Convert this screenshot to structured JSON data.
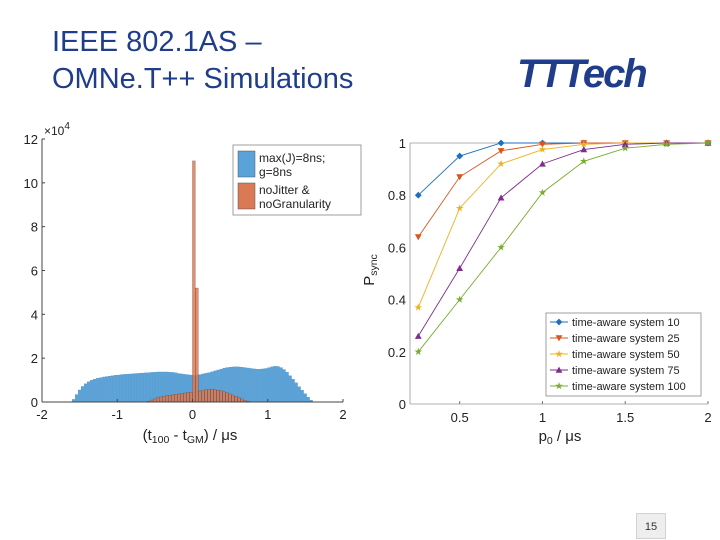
{
  "slide": {
    "title_line1": "IEEE 802.1AS –",
    "title_line2": "OMNe.T++ Simulations",
    "logo_text": "TTTech",
    "page_number": "15",
    "title_color": "#1f3d8a",
    "logo_color": "#1f3d8a"
  },
  "chart_data": [
    {
      "type": "histogram",
      "xlabel_parts": [
        "(t",
        "100",
        " - t",
        "GM",
        ") / μs"
      ],
      "ylabel": "",
      "y_multiplier": "×10",
      "y_multiplier_exp": "4",
      "xlim": [
        -2,
        2
      ],
      "ylim": [
        0,
        120000
      ],
      "x_ticks": [
        -2,
        -1,
        0,
        1,
        2
      ],
      "x_tick_labels": [
        "-2",
        "-1",
        "0",
        "1",
        "2"
      ],
      "y_ticks": [
        0,
        20000,
        40000,
        60000,
        80000,
        100000,
        120000
      ],
      "y_tick_labels": [
        "0",
        "2",
        "4",
        "6",
        "8",
        "10",
        "12"
      ],
      "legend_position": "top-right",
      "series": [
        {
          "name_lines": [
            "max(J)=8ns;",
            "g=8ns"
          ],
          "color": "#5aa3d8",
          "bin_start": -1.6,
          "bin_width": 0.04,
          "values": [
            1200,
            3400,
            5500,
            7100,
            8300,
            9200,
            9900,
            10400,
            10800,
            11100,
            11400,
            11600,
            11800,
            12000,
            12200,
            12300,
            12500,
            12600,
            12700,
            12800,
            12900,
            13000,
            13100,
            13200,
            13300,
            13400,
            13500,
            13600,
            13700,
            13700,
            13700,
            13700,
            13600,
            13500,
            13300,
            13000,
            12800,
            12600,
            12500,
            12300,
            12200,
            12300,
            12500,
            12800,
            13100,
            13400,
            13800,
            14200,
            14600,
            15000,
            15400,
            15700,
            15900,
            16000,
            16100,
            16000,
            15900,
            15700,
            15500,
            15300,
            15100,
            15000,
            15000,
            15100,
            15300,
            15700,
            16100,
            16300,
            16200,
            15700,
            14800,
            13600,
            12000,
            10400,
            8800,
            7000,
            5400,
            3800,
            2200,
            800
          ]
        },
        {
          "name_lines": [
            "noJitter &",
            "noGranularity"
          ],
          "color": "#d97a55",
          "bin_start": -0.6,
          "bin_width": 0.04,
          "values": [
            300,
            900,
            1400,
            1900,
            2300,
            2600,
            2900,
            3100,
            3300,
            3500,
            3700,
            3900,
            4100,
            4300,
            4500,
            110000,
            52000,
            5000,
            5300,
            5600,
            5800,
            5900,
            5700,
            5400,
            5100,
            4700,
            4200,
            3700,
            3200,
            2600,
            2000,
            1400,
            800,
            300
          ]
        }
      ]
    },
    {
      "type": "line",
      "xlabel_parts": [
        "p",
        "0",
        " / μs"
      ],
      "ylabel_parts": [
        "P",
        "sync"
      ],
      "xlim": [
        0.2,
        2
      ],
      "ylim": [
        0,
        1
      ],
      "x_ticks": [
        0.5,
        1,
        1.5,
        2
      ],
      "x_tick_labels": [
        "0.5",
        "1",
        "1.5",
        "2"
      ],
      "y_ticks": [
        0,
        0.2,
        0.4,
        0.6,
        0.8,
        1
      ],
      "y_tick_labels": [
        "0",
        "0.2",
        "0.4",
        "0.6",
        "0.8",
        "1"
      ],
      "legend_position": "bottom-right",
      "x": [
        0.25,
        0.5,
        0.75,
        1,
        1.25,
        1.5,
        1.75,
        2
      ],
      "series": [
        {
          "name": "time-aware system 10",
          "color": "#1f6fbf",
          "marker": "diamond",
          "values": [
            0.8,
            0.95,
            1.0,
            1.0,
            1.0,
            1.0,
            1.0,
            1.0
          ]
        },
        {
          "name": "time-aware system 25",
          "color": "#d9541e",
          "marker": "triangle-down",
          "values": [
            0.64,
            0.87,
            0.97,
            0.995,
            1.0,
            1.0,
            1.0,
            1.0
          ]
        },
        {
          "name": "time-aware system 50",
          "color": "#edb120",
          "marker": "star",
          "values": [
            0.37,
            0.75,
            0.92,
            0.975,
            0.995,
            1.0,
            1.0,
            1.0
          ]
        },
        {
          "name": "time-aware system 75",
          "color": "#7e2f8e",
          "marker": "triangle-up",
          "values": [
            0.26,
            0.52,
            0.79,
            0.92,
            0.975,
            0.995,
            1.0,
            1.0
          ]
        },
        {
          "name": "time-aware system 100",
          "color": "#77ac30",
          "marker": "star",
          "values": [
            0.2,
            0.4,
            0.6,
            0.81,
            0.93,
            0.98,
            0.995,
            1.0
          ]
        }
      ]
    }
  ]
}
